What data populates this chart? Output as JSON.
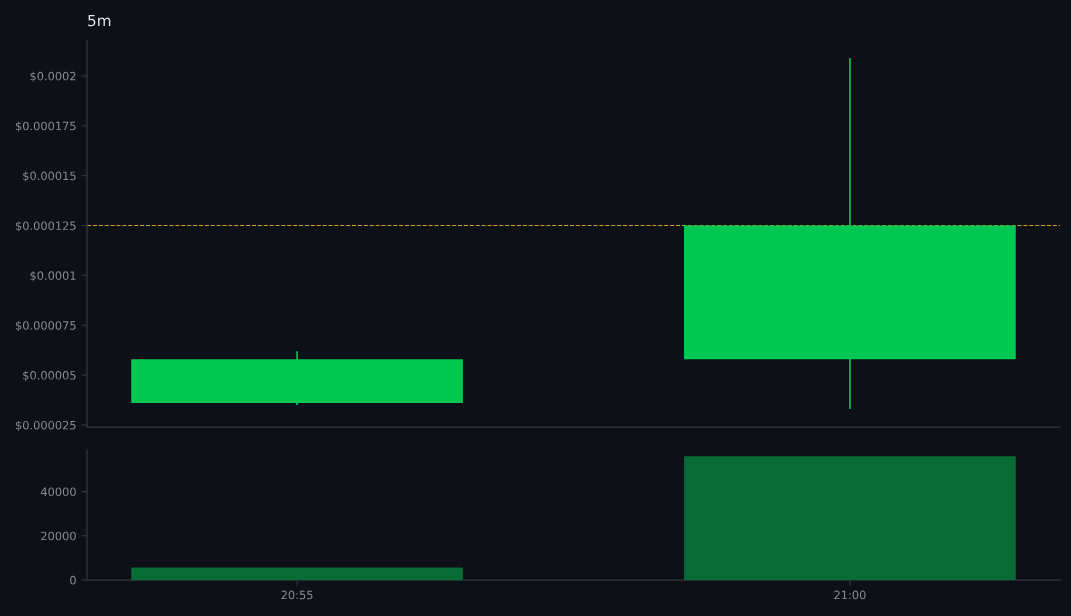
{
  "chart_data": [
    {
      "type": "candlestick",
      "title": "5m",
      "categories": [
        null,
        null
      ],
      "ohlc": [
        [
          3.6e-05,
          6.2e-05,
          3.5e-05,
          5.8e-05
        ],
        [
          5.8e-05,
          0.000209,
          3.3e-05,
          0.000125
        ]
      ],
      "color": "#00c853",
      "ylim": [
        2.4e-05,
        0.000218
      ],
      "yticks": [
        {
          "value": 2.5e-05,
          "label": "$0.000025"
        },
        {
          "value": 5e-05,
          "label": "$0.00005"
        },
        {
          "value": 7.5e-05,
          "label": "$0.000075"
        },
        {
          "value": 0.0001,
          "label": "$0.0001"
        },
        {
          "value": 0.000125,
          "label": "$0.000125"
        },
        {
          "value": 0.00015,
          "label": "$0.00015"
        },
        {
          "value": 0.000175,
          "label": "$0.000175"
        },
        {
          "value": 0.0002,
          "label": "$0.0002"
        }
      ],
      "ref_lines": [
        {
          "axis": "y",
          "value": 0.000125,
          "color": "#c9a227",
          "line_style": "dashed"
        }
      ],
      "tick_labels": "y"
    },
    {
      "type": "bar",
      "categories": [
        "20:55",
        "21:00"
      ],
      "values": [
        5600,
        56000
      ],
      "color": "#066b35",
      "ylim": [
        0,
        58800
      ],
      "yticks": [
        0,
        20000,
        40000
      ]
    }
  ]
}
